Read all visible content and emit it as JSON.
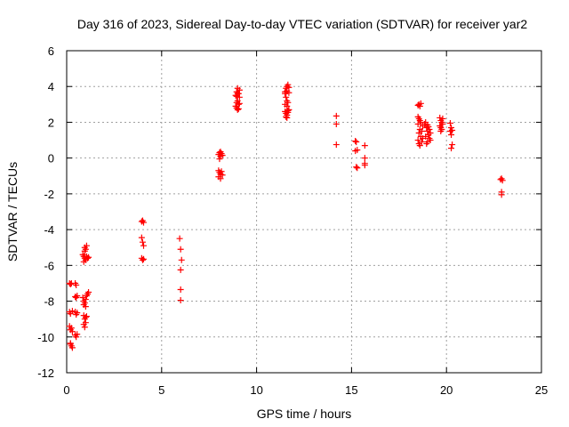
{
  "chart_data": {
    "type": "scatter",
    "title": "Day 316 of 2023, Sidereal Day-to-day VTEC variation (SDTVAR) for receiver yar2",
    "xlabel": "GPS time / hours",
    "ylabel": "SDTVAR / TECUs",
    "xlim": [
      0,
      25
    ],
    "ylim": [
      -12,
      6
    ],
    "xticks": [
      0,
      5,
      10,
      15,
      20,
      25
    ],
    "yticks": [
      -12,
      -10,
      -8,
      -6,
      -4,
      -2,
      0,
      2,
      4,
      6
    ],
    "xtick_labels": [
      "0",
      "5",
      "10",
      "15",
      "20",
      "25"
    ],
    "ytick_labels": [
      "-12",
      "-10",
      "-8",
      "-6",
      "-4",
      "-2",
      "0",
      "2",
      "4",
      "6"
    ],
    "grid": true,
    "marker": "+",
    "series_color": "#ff0000",
    "series": [
      {
        "name": "SDTVAR",
        "points": [
          [
            0.15,
            -7.0
          ],
          [
            0.2,
            -7.05
          ],
          [
            0.25,
            -7.0
          ],
          [
            0.45,
            -7.0
          ],
          [
            0.5,
            -7.1
          ],
          [
            0.15,
            -8.6
          ],
          [
            0.2,
            -8.7
          ],
          [
            0.3,
            -8.55
          ],
          [
            0.45,
            -8.6
          ],
          [
            0.5,
            -8.75
          ],
          [
            0.55,
            -8.65
          ],
          [
            0.15,
            -9.4
          ],
          [
            0.2,
            -9.6
          ],
          [
            0.25,
            -9.5
          ],
          [
            0.3,
            -9.7
          ],
          [
            0.2,
            -10.4
          ],
          [
            0.25,
            -10.5
          ],
          [
            0.3,
            -10.6
          ],
          [
            0.2,
            -10.35
          ],
          [
            0.45,
            -9.9
          ],
          [
            0.5,
            -10.0
          ],
          [
            0.55,
            -9.85
          ],
          [
            0.45,
            -7.75
          ],
          [
            0.5,
            -7.8
          ],
          [
            0.55,
            -7.7
          ],
          [
            0.85,
            -7.8
          ],
          [
            0.9,
            -8.0
          ],
          [
            0.95,
            -8.1
          ],
          [
            1.0,
            -7.9
          ],
          [
            1.05,
            -7.7
          ],
          [
            1.1,
            -7.6
          ],
          [
            1.15,
            -7.5
          ],
          [
            0.9,
            -8.2
          ],
          [
            1.0,
            -8.3
          ],
          [
            0.9,
            -8.8
          ],
          [
            0.95,
            -9.0
          ],
          [
            1.0,
            -8.9
          ],
          [
            1.05,
            -8.85
          ],
          [
            0.9,
            -9.3
          ],
          [
            0.95,
            -9.45
          ],
          [
            1.0,
            -9.2
          ],
          [
            0.85,
            -5.4
          ],
          [
            0.9,
            -5.5
          ],
          [
            0.95,
            -5.6
          ],
          [
            1.0,
            -5.7
          ],
          [
            1.05,
            -5.5
          ],
          [
            1.1,
            -5.6
          ],
          [
            1.15,
            -5.55
          ],
          [
            0.9,
            -5.8
          ],
          [
            0.95,
            -5.2
          ],
          [
            1.0,
            -5.1
          ],
          [
            1.05,
            -4.9
          ],
          [
            0.95,
            -5.0
          ],
          [
            3.95,
            -3.55
          ],
          [
            4.0,
            -3.5
          ],
          [
            4.05,
            -3.6
          ],
          [
            3.95,
            -4.45
          ],
          [
            4.0,
            -4.7
          ],
          [
            4.05,
            -4.9
          ],
          [
            3.95,
            -5.6
          ],
          [
            4.0,
            -5.7
          ],
          [
            4.05,
            -5.65
          ],
          [
            5.95,
            -4.5
          ],
          [
            6.0,
            -5.1
          ],
          [
            6.05,
            -5.7
          ],
          [
            6.0,
            -6.25
          ],
          [
            6.0,
            -7.35
          ],
          [
            6.0,
            -7.95
          ],
          [
            8.0,
            0.2
          ],
          [
            8.05,
            0.3
          ],
          [
            8.1,
            0.1
          ],
          [
            8.15,
            0.25
          ],
          [
            8.2,
            0.15
          ],
          [
            8.05,
            -0.05
          ],
          [
            8.1,
            0.35
          ],
          [
            8.0,
            -0.7
          ],
          [
            8.05,
            -0.8
          ],
          [
            8.1,
            -0.9
          ],
          [
            8.15,
            -0.75
          ],
          [
            8.0,
            -1.05
          ],
          [
            8.1,
            -1.15
          ],
          [
            8.2,
            -0.95
          ],
          [
            8.9,
            3.5
          ],
          [
            8.95,
            3.7
          ],
          [
            9.0,
            3.9
          ],
          [
            9.05,
            3.6
          ],
          [
            9.1,
            3.4
          ],
          [
            9.0,
            3.2
          ],
          [
            9.05,
            3.0
          ],
          [
            8.95,
            3.1
          ],
          [
            8.9,
            2.9
          ],
          [
            8.95,
            2.8
          ],
          [
            9.0,
            2.7
          ],
          [
            9.05,
            2.75
          ],
          [
            9.1,
            3.05
          ],
          [
            9.0,
            3.6
          ],
          [
            9.1,
            3.8
          ],
          [
            8.95,
            3.45
          ],
          [
            11.5,
            3.7
          ],
          [
            11.55,
            3.9
          ],
          [
            11.6,
            4.0
          ],
          [
            11.65,
            4.1
          ],
          [
            11.7,
            3.95
          ],
          [
            11.5,
            3.6
          ],
          [
            11.6,
            3.75
          ],
          [
            11.7,
            3.65
          ],
          [
            11.55,
            3.4
          ],
          [
            11.6,
            3.2
          ],
          [
            11.65,
            3.1
          ],
          [
            11.5,
            3.0
          ],
          [
            11.6,
            2.9
          ],
          [
            11.5,
            2.6
          ],
          [
            11.55,
            2.5
          ],
          [
            11.6,
            2.4
          ],
          [
            11.65,
            2.55
          ],
          [
            11.7,
            2.7
          ],
          [
            11.6,
            2.25
          ],
          [
            11.55,
            2.3
          ],
          [
            11.65,
            2.65
          ],
          [
            14.2,
            2.35
          ],
          [
            14.2,
            1.9
          ],
          [
            14.2,
            0.75
          ],
          [
            15.2,
            0.95
          ],
          [
            15.25,
            0.9
          ],
          [
            15.3,
            0.45
          ],
          [
            15.2,
            0.4
          ],
          [
            15.25,
            -0.5
          ],
          [
            15.3,
            -0.55
          ],
          [
            15.7,
            0.7
          ],
          [
            15.7,
            0.0
          ],
          [
            15.7,
            -0.3
          ],
          [
            15.7,
            -0.4
          ],
          [
            18.5,
            2.95
          ],
          [
            18.55,
            3.0
          ],
          [
            18.6,
            2.9
          ],
          [
            18.65,
            3.05
          ],
          [
            18.5,
            2.3
          ],
          [
            18.55,
            2.2
          ],
          [
            18.6,
            2.1
          ],
          [
            18.65,
            2.0
          ],
          [
            18.5,
            1.9
          ],
          [
            18.6,
            1.6
          ],
          [
            18.55,
            1.4
          ],
          [
            18.65,
            1.2
          ],
          [
            18.5,
            1.0
          ],
          [
            18.55,
            0.8
          ],
          [
            18.6,
            0.7
          ],
          [
            18.7,
            0.9
          ],
          [
            18.75,
            1.1
          ],
          [
            18.7,
            1.5
          ],
          [
            18.75,
            1.8
          ],
          [
            18.85,
            1.9
          ],
          [
            18.9,
            2.0
          ],
          [
            18.95,
            1.7
          ],
          [
            19.0,
            1.5
          ],
          [
            19.05,
            1.3
          ],
          [
            19.1,
            1.1
          ],
          [
            19.0,
            0.9
          ],
          [
            18.95,
            0.8
          ],
          [
            19.0,
            1.85
          ],
          [
            19.05,
            1.75
          ],
          [
            19.1,
            1.6
          ],
          [
            19.15,
            1.4
          ],
          [
            19.15,
            1.0
          ],
          [
            18.9,
            1.2
          ],
          [
            19.65,
            2.25
          ],
          [
            19.7,
            2.1
          ],
          [
            19.75,
            2.0
          ],
          [
            19.8,
            1.9
          ],
          [
            19.65,
            1.8
          ],
          [
            19.7,
            1.7
          ],
          [
            19.75,
            1.6
          ],
          [
            19.8,
            2.2
          ],
          [
            19.7,
            1.5
          ],
          [
            20.2,
            1.95
          ],
          [
            20.25,
            1.7
          ],
          [
            20.3,
            1.55
          ],
          [
            20.2,
            1.5
          ],
          [
            20.25,
            1.3
          ],
          [
            20.3,
            0.75
          ],
          [
            20.25,
            0.55
          ],
          [
            22.85,
            -1.2
          ],
          [
            22.9,
            -1.15
          ],
          [
            22.95,
            -1.25
          ],
          [
            22.9,
            -1.9
          ],
          [
            22.9,
            -2.05
          ]
        ]
      }
    ]
  }
}
